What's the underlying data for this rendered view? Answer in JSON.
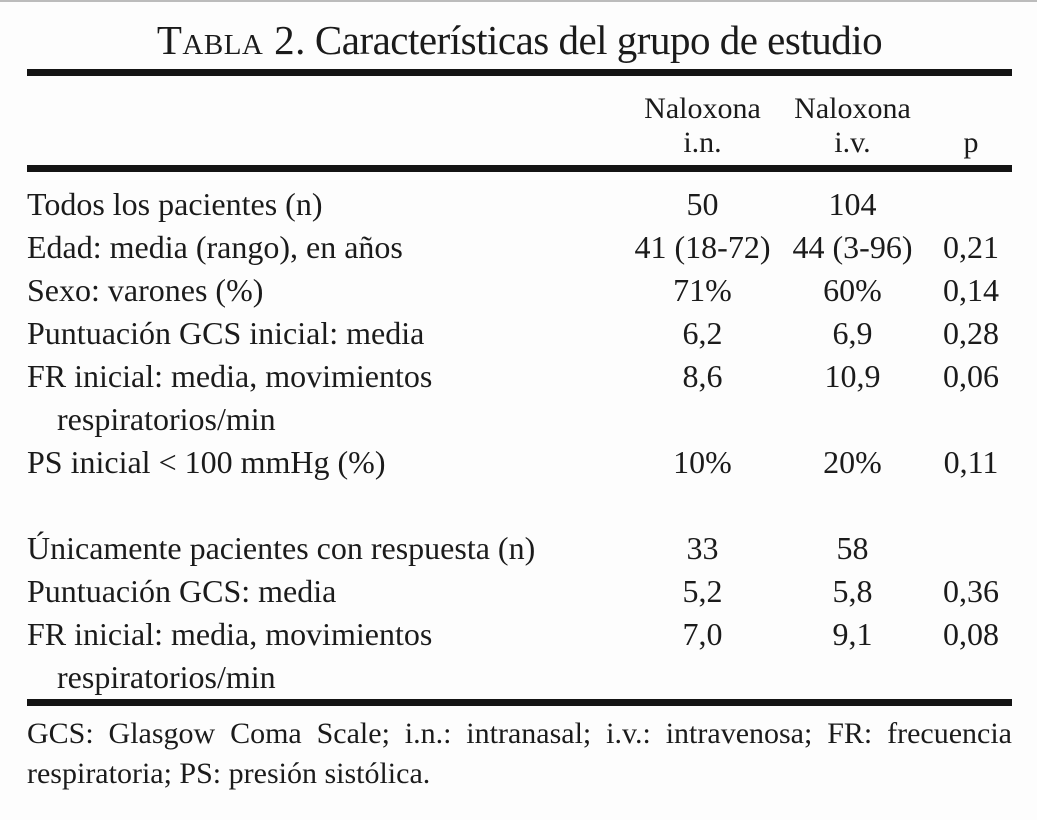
{
  "title": {
    "number": "Tabla 2.",
    "text": "Características del grupo de estudio"
  },
  "header": {
    "col_in": {
      "line1": "Naloxona",
      "line2": "i.n."
    },
    "col_iv": {
      "line1": "Naloxona",
      "line2": "i.v."
    },
    "col_p": "p"
  },
  "rows": [
    {
      "label": "Todos los pacientes (n)",
      "in": "50",
      "iv": "104",
      "p": ""
    },
    {
      "label": "Edad: media (rango), en años",
      "in": "41 (18-72)",
      "iv": "44 (3-96)",
      "p": "0,21"
    },
    {
      "label": "Sexo: varones (%)",
      "in": "71%",
      "iv": "60%",
      "p": "0,14"
    },
    {
      "label": "Puntuación GCS inicial: media",
      "in": "6,2",
      "iv": "6,9",
      "p": "0,28"
    },
    {
      "label": "FR inicial: media, movimientos",
      "label2": "respiratorios/min",
      "in": "8,6",
      "iv": "10,9",
      "p": "0,06"
    },
    {
      "label": "PS inicial < 100 mmHg (%)",
      "in": "10%",
      "iv": "20%",
      "p": "0,11"
    },
    {
      "spacer": true
    },
    {
      "label": "Únicamente pacientes con respuesta (n)",
      "in": "33",
      "iv": "58",
      "p": ""
    },
    {
      "label": "Puntuación GCS: media",
      "in": "5,2",
      "iv": "5,8",
      "p": "0,36"
    },
    {
      "label": "FR inicial: media, movimientos",
      "label2": "respiratorios/min",
      "in": "7,0",
      "iv": "9,1",
      "p": "0,08"
    }
  ],
  "footnote": {
    "line1": "GCS: Glasgow Coma Scale; i.n.: intranasal; i.v.: intravenosa; FR: frecuencia",
    "line2": "respiratoria; PS: presión sistólica."
  },
  "colors": {
    "text": "#1b1b1b",
    "rule": "#141414",
    "background": "#fdfdfd"
  }
}
